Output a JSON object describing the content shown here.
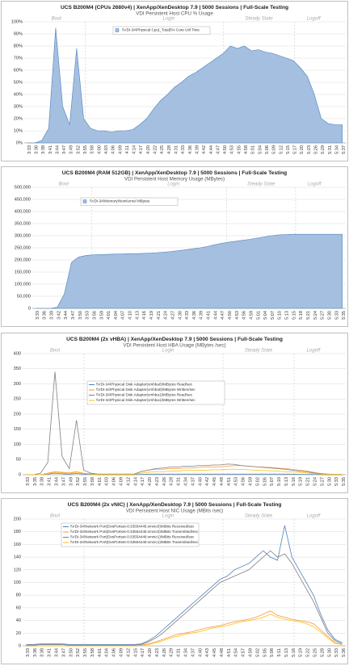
{
  "chart_data": [
    {
      "type": "area",
      "title": "UCS B200M4 (CPUs 2680v4) | XenApp/XenDesktop 7.9 | 5000 Sessions | Full-Scale Testing",
      "subtitle": "VDI Persistent Host CPU % Usage",
      "annotations": [
        "Boot",
        "Login",
        "Steady State",
        "Logoff"
      ],
      "categories": [
        "3:33",
        "3:36",
        "3:38",
        "3:41",
        "3:44",
        "3:47",
        "3:49",
        "3:52",
        "3:55",
        "3:58",
        "4:00",
        "4:03",
        "4:06",
        "4:09",
        "4:11",
        "4:14",
        "4:17",
        "4:20",
        "4:22",
        "4:25",
        "4:28",
        "4:31",
        "4:33",
        "4:36",
        "4:39",
        "4:42",
        "4:44",
        "4:47",
        "4:50",
        "4:53",
        "4:55",
        "4:58",
        "5:01",
        "5:04",
        "5:06",
        "5:09",
        "5:12",
        "5:15",
        "5:17",
        "5:20",
        "5:23",
        "5:26",
        "5:29",
        "5:31",
        "5:34",
        "5:37"
      ],
      "series": [
        {
          "name": "\\\\VDI-34\\Physical Cpu(_Total)\\% Core Util Time",
          "color": "#4f81bd",
          "fill": "#a4bfe0",
          "values": [
            0,
            0,
            2,
            12,
            95,
            30,
            15,
            78,
            20,
            12,
            10,
            10,
            9,
            10,
            10,
            11,
            15,
            20,
            28,
            35,
            40,
            46,
            50,
            55,
            58,
            62,
            66,
            70,
            74,
            80,
            78,
            80,
            76,
            77,
            75,
            74,
            72,
            70,
            68,
            62,
            55,
            40,
            20,
            16,
            15,
            15
          ]
        }
      ],
      "ylim": [
        0,
        100
      ],
      "yticks": [
        {
          "value": 0,
          "label": "0%"
        },
        {
          "value": 10,
          "label": "10%"
        },
        {
          "value": 20,
          "label": "20%"
        },
        {
          "value": 30,
          "label": "30%"
        },
        {
          "value": 40,
          "label": "40%"
        },
        {
          "value": 50,
          "label": "50%"
        },
        {
          "value": 60,
          "label": "60%"
        },
        {
          "value": 70,
          "label": "70%"
        },
        {
          "value": 80,
          "label": "80%"
        },
        {
          "value": 90,
          "label": "90%"
        },
        {
          "value": 100,
          "label": "100%"
        }
      ],
      "grid": true
    },
    {
      "type": "area",
      "title": "UCS B200M4 (RAM 512GB) | XenApp/XenDesktop 7.9 | 5000 Sessions | Full-Scale Testing",
      "subtitle": "VDI Persistent Host Memory Usage (MBytes)",
      "annotations": [
        "Boot",
        "Login",
        "Steady State",
        "Logoff"
      ],
      "categories": [
        "3:33",
        "3:36",
        "3:39",
        "3:42",
        "3:44",
        "3:47",
        "3:50",
        "3:53",
        "3:56",
        "3:59",
        "4:01",
        "4:04",
        "4:07",
        "4:10",
        "4:13",
        "4:16",
        "4:19",
        "4:21",
        "4:24",
        "4:27",
        "4:30",
        "4:33",
        "4:36",
        "4:39",
        "4:41",
        "4:44",
        "4:47",
        "4:50",
        "4:53",
        "4:56",
        "4:59",
        "5:01",
        "5:04",
        "5:07",
        "5:10",
        "5:13",
        "5:15",
        "5:18",
        "5:21",
        "5:24",
        "5:27",
        "5:30",
        "5:33",
        "5:35"
      ],
      "series": [
        {
          "name": "\\\\VDI-34\\Memory\\NonKernel MBytes",
          "color": "#4f81bd",
          "fill": "#a4bfe0",
          "values": [
            0,
            0,
            0,
            5000,
            60000,
            190000,
            212000,
            218000,
            221000,
            222000,
            223000,
            224000,
            225000,
            226000,
            226000,
            227000,
            228000,
            230000,
            232000,
            235000,
            238000,
            242000,
            246000,
            250000,
            255000,
            262000,
            268000,
            273000,
            277000,
            281000,
            285000,
            290000,
            295000,
            300000,
            303000,
            305000,
            306000,
            306000,
            306000,
            306000,
            306000,
            306000,
            306000,
            306000
          ]
        }
      ],
      "ylim": [
        0,
        500000
      ],
      "yticks": [
        0,
        {
          "value": 50000,
          "label": "50,000"
        },
        {
          "value": 100000,
          "label": "100,000"
        },
        {
          "value": 150000,
          "label": "150,000"
        },
        {
          "value": 200000,
          "label": "200,000"
        },
        {
          "value": 250000,
          "label": "250,000"
        },
        {
          "value": 300000,
          "label": "300,000"
        },
        {
          "value": 350000,
          "label": "350,000"
        },
        {
          "value": 400000,
          "label": "400,000"
        },
        {
          "value": 450000,
          "label": "450,000"
        },
        {
          "value": 500000,
          "label": "500,000"
        }
      ],
      "grid": true
    },
    {
      "type": "line",
      "title": "UCS B200M4 (2x vHBA) | XenApp/XenDesktop 7.9 | 5000 Sessions | Full-Scale Testing",
      "subtitle": "VDI Persistent Host HBA Usage (MBytes /sec)",
      "annotations": [
        "Boot",
        "Login",
        "Steady State",
        "Logoff"
      ],
      "categories": [
        "3:33",
        "3:35",
        "3:38",
        "3:41",
        "3:44",
        "3:47",
        "3:49",
        "3:52",
        "3:55",
        "3:58",
        "4:01",
        "4:03",
        "4:06",
        "4:09",
        "4:12",
        "4:14",
        "4:17",
        "4:20",
        "4:23",
        "4:26",
        "4:28",
        "4:31",
        "4:34",
        "4:37",
        "4:40",
        "4:42",
        "4:45",
        "4:48",
        "4:51",
        "4:53",
        "4:56",
        "4:59",
        "5:02",
        "5:05",
        "5:07",
        "5:10",
        "5:13",
        "5:16",
        "5:19",
        "5:21",
        "5:24",
        "5:27",
        "5:30",
        "5:33",
        "5:35"
      ],
      "series": [
        {
          "name": "\\\\VDI-34\\Physical Disk Adapter(vmhba0)\\MBytes Read/sec",
          "color": "#4f81bd",
          "values": [
            0,
            0,
            0,
            2,
            5,
            3,
            2,
            4,
            2,
            1,
            0,
            0,
            0,
            0,
            0,
            0,
            1,
            2,
            2,
            2,
            2,
            2,
            2,
            2,
            2,
            2,
            2,
            2,
            2,
            2,
            2,
            2,
            2,
            2,
            2,
            2,
            2,
            2,
            1,
            1,
            1,
            0,
            0,
            0,
            0
          ]
        },
        {
          "name": "\\\\VDI-34\\Physical Disk Adapter(vmhba0)\\MBytes Written/sec",
          "color": "#f79646",
          "values": [
            0,
            0,
            0,
            5,
            10,
            8,
            6,
            10,
            5,
            3,
            2,
            2,
            2,
            2,
            2,
            2,
            10,
            15,
            18,
            18,
            20,
            20,
            22,
            22,
            24,
            25,
            25,
            26,
            28,
            30,
            30,
            28,
            26,
            25,
            24,
            22,
            20,
            18,
            15,
            12,
            8,
            4,
            2,
            1,
            1
          ]
        },
        {
          "name": "\\\\VDI-34\\Physical Disk Adapter(vmhba1)\\MBytes Read/sec",
          "color": "#7f7f7f",
          "values": [
            0,
            0,
            5,
            40,
            340,
            60,
            20,
            180,
            15,
            5,
            2,
            2,
            2,
            2,
            2,
            2,
            10,
            15,
            20,
            22,
            25,
            25,
            28,
            28,
            30,
            30,
            32,
            32,
            35,
            34,
            30,
            28,
            26,
            24,
            22,
            20,
            18,
            15,
            12,
            10,
            6,
            3,
            2,
            1,
            1
          ]
        },
        {
          "name": "\\\\VDI-34\\Physical Disk Adapter(vmhba1)\\MBytes Written/sec",
          "color": "#ffc000",
          "values": [
            0,
            0,
            0,
            3,
            8,
            6,
            4,
            8,
            4,
            2,
            1,
            1,
            1,
            1,
            1,
            1,
            5,
            8,
            10,
            10,
            12,
            12,
            14,
            14,
            15,
            15,
            16,
            16,
            18,
            18,
            18,
            16,
            15,
            14,
            13,
            12,
            10,
            9,
            8,
            6,
            4,
            2,
            1,
            1,
            1
          ]
        }
      ],
      "ylim": [
        0,
        400
      ],
      "yticks": [
        0,
        50,
        100,
        150,
        200,
        250,
        300,
        350,
        400
      ],
      "grid": true
    },
    {
      "type": "line",
      "title": "UCS B200M4 (2x vNIC) | XenApp/XenDesktop 7.9 | 5000 Sessions | Full-Scale Testing",
      "subtitle": "VDI Persistent Host NIC Usage (MBits /sec)",
      "annotations": [
        "Boot",
        "Login",
        "Steady State",
        "Logoff"
      ],
      "categories": [
        "3:33",
        "3:36",
        "3:38",
        "3:41",
        "3:44",
        "3:47",
        "3:50",
        "3:52",
        "3:55",
        "3:58",
        "4:01",
        "4:04",
        "4:06",
        "4:09",
        "4:12",
        "4:15",
        "4:17",
        "4:20",
        "4:23",
        "4:26",
        "4:29",
        "4:31",
        "4:34",
        "4:37",
        "4:40",
        "4:43",
        "4:45",
        "4:48",
        "4:51",
        "4:54",
        "4:57",
        "4:59",
        "5:02",
        "5:05",
        "5:08",
        "5:11",
        "5:13",
        "5:16",
        "5:19",
        "5:22",
        "5:25",
        "5:28",
        "5:30",
        "5:33",
        "5:36"
      ],
      "series": [
        {
          "name": "\\\\VDI-34\\Network Port(DvsPortset-0:33554445:vmnic0)\\MBits Received/sec",
          "color": "#4f81bd",
          "values": [
            2,
            2,
            3,
            3,
            3,
            3,
            2,
            2,
            2,
            2,
            2,
            2,
            2,
            2,
            2,
            2,
            3,
            8,
            15,
            25,
            35,
            45,
            55,
            65,
            75,
            85,
            95,
            105,
            110,
            120,
            125,
            130,
            140,
            150,
            140,
            135,
            190,
            140,
            120,
            100,
            80,
            50,
            25,
            10,
            5
          ]
        },
        {
          "name": "\\\\VDI-34\\Network Port(DvsPortset-0:33554445:vmnic0)\\MBits Transmitted/sec",
          "color": "#f79646",
          "values": [
            0,
            0,
            0,
            0,
            0,
            0,
            0,
            0,
            0,
            0,
            0,
            0,
            0,
            0,
            0,
            0,
            1,
            3,
            6,
            10,
            14,
            18,
            20,
            22,
            25,
            28,
            30,
            32,
            35,
            38,
            40,
            42,
            45,
            50,
            55,
            48,
            45,
            42,
            40,
            38,
            35,
            25,
            15,
            5,
            2
          ]
        },
        {
          "name": "\\\\VDI-34\\Network Port(DvsPortset-0:33554446:vmnic1)\\MBits Received/sec",
          "color": "#7f7f7f",
          "values": [
            1,
            1,
            2,
            2,
            2,
            2,
            1,
            1,
            1,
            1,
            1,
            1,
            1,
            1,
            1,
            1,
            2,
            6,
            12,
            20,
            30,
            40,
            50,
            60,
            70,
            80,
            90,
            100,
            105,
            110,
            115,
            120,
            130,
            140,
            150,
            140,
            145,
            130,
            110,
            90,
            70,
            45,
            20,
            8,
            3
          ]
        },
        {
          "name": "\\\\VDI-34\\Network Port(DvsPortset-0:33554446:vmnic1)\\MBits Transmitted/sec",
          "color": "#ffc000",
          "values": [
            0,
            0,
            0,
            0,
            0,
            0,
            0,
            0,
            0,
            0,
            0,
            0,
            0,
            0,
            0,
            0,
            1,
            2,
            5,
            8,
            12,
            15,
            18,
            20,
            22,
            25,
            28,
            30,
            32,
            35,
            38,
            40,
            42,
            45,
            50,
            45,
            42,
            40,
            38,
            35,
            30,
            22,
            12,
            4,
            2
          ]
        }
      ],
      "ylim": [
        0,
        200
      ],
      "yticks": [
        0,
        20,
        40,
        60,
        80,
        100,
        120,
        140,
        160,
        180,
        200
      ],
      "grid": true
    }
  ]
}
